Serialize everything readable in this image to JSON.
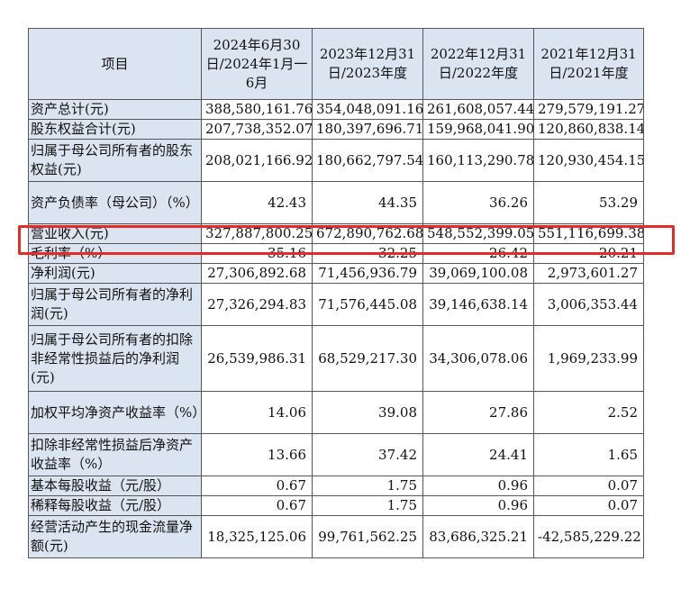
{
  "table": {
    "headers": [
      "项目",
      "2024年6月30日/2024年1月一6月",
      "2023年12月31日/2023年度",
      "2022年12月31日/2022年度",
      "2021年12月31日/2021年度"
    ],
    "rows": [
      {
        "label": "资产总计(元)",
        "values": [
          "388,580,161.76",
          "354,048,091.16",
          "261,608,057.44",
          "279,579,191.27"
        ]
      },
      {
        "label": "股东权益合计(元)",
        "values": [
          "207,738,352.07",
          "180,397,696.71",
          "159,968,041.90",
          "120,860,838.14"
        ]
      },
      {
        "label": "归属于母公司所有者的股东权益(元)",
        "values": [
          "208,021,166.92",
          "180,662,797.54",
          "160,113,290.78",
          "120,930,454.15"
        ]
      },
      {
        "label": "资产负债率（母公司）（%）",
        "values": [
          "42.43",
          "44.35",
          "36.26",
          "53.29"
        ]
      },
      {
        "label": "营业收入(元)",
        "values": [
          "327,887,800.25",
          "672,890,762.68",
          "548,552,399.05",
          "551,116,699.38"
        ]
      },
      {
        "label": "毛利率（%）",
        "values": [
          "35.16",
          "32.25",
          "26.42",
          "20.21"
        ]
      },
      {
        "label": "净利润(元)",
        "values": [
          "27,306,892.68",
          "71,456,936.79",
          "39,069,100.08",
          "2,973,601.27"
        ]
      },
      {
        "label": "归属于母公司所有者的净利润(元)",
        "values": [
          "27,326,294.83",
          "71,576,445.08",
          "39,146,638.14",
          "3,006,353.44"
        ]
      },
      {
        "label": "归属于母公司所有者的扣除非经常性损益后的净利润(元)",
        "values": [
          "26,539,986.31",
          "68,529,217.30",
          "34,306,078.06",
          "1,969,233.99"
        ]
      },
      {
        "label": "加权平均净资产收益率（%）",
        "values": [
          "14.06",
          "39.08",
          "27.86",
          "2.52"
        ]
      },
      {
        "label": "扣除非经常性损益后净资产收益率（%）",
        "values": [
          "13.66",
          "37.42",
          "24.41",
          "1.65"
        ]
      },
      {
        "label": "基本每股收益（元/股）",
        "values": [
          "0.67",
          "1.75",
          "0.96",
          "0.07"
        ]
      },
      {
        "label": "稀释每股收益（元/股）",
        "values": [
          "0.67",
          "1.75",
          "0.96",
          "0.07"
        ]
      },
      {
        "label": "经营活动产生的现金流量净额(元)",
        "values": [
          "18,325,125.06",
          "99,761,562.25",
          "83,686,325.21",
          "-42,585,229.22"
        ]
      }
    ]
  },
  "highlight": {
    "row_label": "营业收入(元)",
    "color": "#e52b25"
  },
  "colors": {
    "header_fill": "#dbe5f1",
    "border": "#555555"
  }
}
